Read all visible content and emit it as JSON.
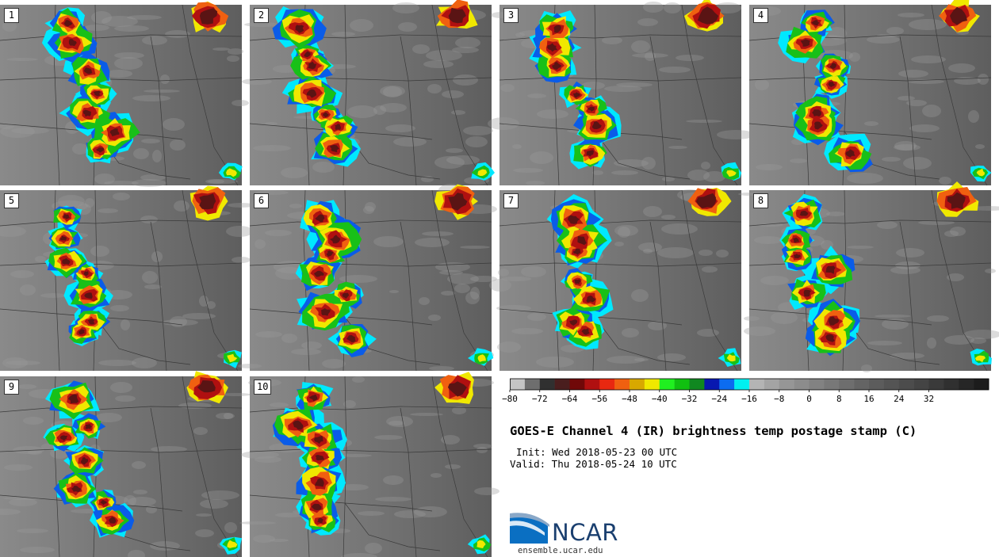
{
  "panels": [
    {
      "label": "1"
    },
    {
      "label": "2"
    },
    {
      "label": "3"
    },
    {
      "label": "4"
    },
    {
      "label": "5"
    },
    {
      "label": "6"
    },
    {
      "label": "7"
    },
    {
      "label": "8"
    },
    {
      "label": "9"
    },
    {
      "label": "10"
    }
  ],
  "colorbar": {
    "min": -80,
    "step": 4,
    "tick_labels": [
      "−80",
      "−72",
      "−64",
      "−56",
      "−48",
      "−40",
      "−32",
      "−24",
      "−16",
      "−8",
      "0",
      "8",
      "16",
      "24",
      "32"
    ],
    "colors": [
      "#c4c4c4",
      "#6e6e6e",
      "#303030",
      "#4a1e1e",
      "#700808",
      "#b01010",
      "#e82810",
      "#f06010",
      "#d8a800",
      "#f0e800",
      "#20f020",
      "#10c010",
      "#108820",
      "#0818b0",
      "#0c6cf0",
      "#00f0f0",
      "#b4b4b4",
      "#a4a4a4",
      "#969696",
      "#8c8c8c",
      "#828282",
      "#787878",
      "#6e6e6e",
      "#646464",
      "#5c5c5c",
      "#545454",
      "#4c4c4c",
      "#444444",
      "#3a3a3a",
      "#303030",
      "#262626",
      "#1c1c1c"
    ]
  },
  "title": "GOES-E Channel 4 (IR) brightness temp postage stamp (C)",
  "init": "Init: Wed 2018-05-23 00 UTC",
  "valid": "Valid: Thu 2018-05-24 10 UTC",
  "logo_text": "NCAR",
  "website": "ensemble.ucar.edu"
}
